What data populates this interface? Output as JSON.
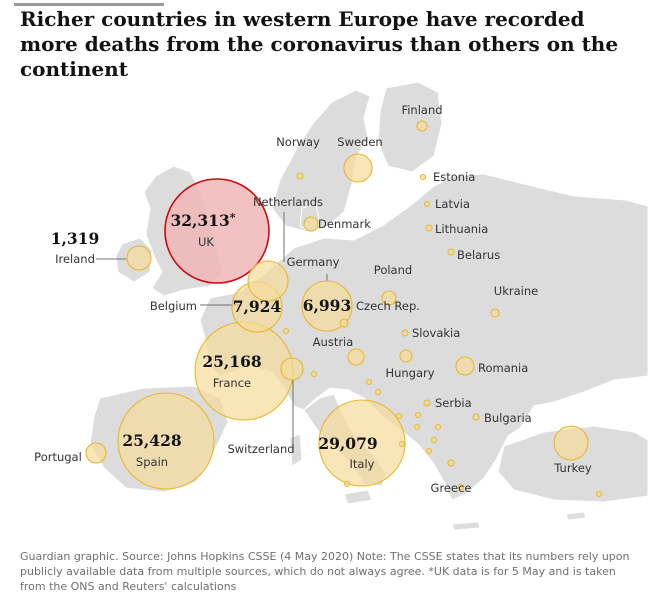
{
  "title": "Richer countries in western Europe have recorded more deaths from the coronavirus than others on the continent",
  "footer": "Guardian graphic. Source: Johns Hopkins CSSE (4 May 2020) Note: The CSSE states that its numbers rely upon publicly available data from multiple sources, which do not always agree. *UK data is for 5 May and is taken from the ONS and Reuters' calculations",
  "colors": {
    "land": "#dcdcdc",
    "land_stroke": "#ffffff",
    "bubble_fill": "#f5dc9a",
    "bubble_stroke": "#e8b72a",
    "uk_fill": "#f0b6b6",
    "uk_stroke": "#cc0a11",
    "leader": "#707070"
  },
  "chart_data": {
    "type": "bubble-map",
    "metric": "deaths",
    "countries": [
      {
        "name": "UK",
        "value": 32313,
        "display": "32,313",
        "suffix": "*",
        "highlight": true
      },
      {
        "name": "Italy",
        "value": 29079,
        "display": "29,079"
      },
      {
        "name": "Spain",
        "value": 25428,
        "display": "25,428"
      },
      {
        "name": "France",
        "value": 25168,
        "display": "25,168"
      },
      {
        "name": "Belgium",
        "value": 7924,
        "display": "7,924"
      },
      {
        "name": "Germany",
        "value": 6993,
        "display": "6,993"
      },
      {
        "name": "Ireland",
        "value": 1319,
        "display": "1,319"
      },
      {
        "name": "Netherlands"
      },
      {
        "name": "Sweden"
      },
      {
        "name": "Turkey"
      },
      {
        "name": "Switzerland"
      },
      {
        "name": "Portugal"
      },
      {
        "name": "Romania"
      },
      {
        "name": "Austria"
      },
      {
        "name": "Poland"
      },
      {
        "name": "Denmark"
      },
      {
        "name": "Norway"
      },
      {
        "name": "Finland"
      },
      {
        "name": "Estonia"
      },
      {
        "name": "Latvia"
      },
      {
        "name": "Lithuania"
      },
      {
        "name": "Belarus"
      },
      {
        "name": "Ukraine"
      },
      {
        "name": "Czech Rep."
      },
      {
        "name": "Slovakia"
      },
      {
        "name": "Hungary"
      },
      {
        "name": "Serbia"
      },
      {
        "name": "Bulgaria"
      },
      {
        "name": "Greece"
      }
    ]
  }
}
